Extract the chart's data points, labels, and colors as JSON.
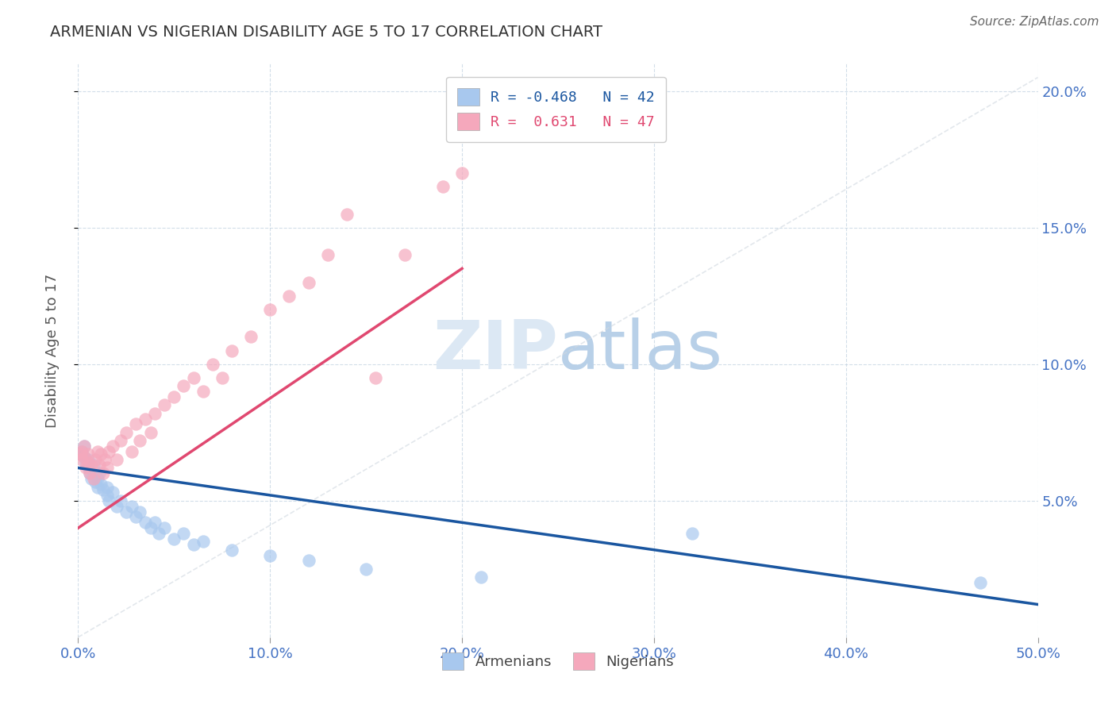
{
  "title": "ARMENIAN VS NIGERIAN DISABILITY AGE 5 TO 17 CORRELATION CHART",
  "source": "Source: ZipAtlas.com",
  "ylabel": "Disability Age 5 to 17",
  "xlim": [
    0.0,
    0.5
  ],
  "ylim": [
    0.0,
    0.21
  ],
  "xticks": [
    0.0,
    0.1,
    0.2,
    0.3,
    0.4,
    0.5
  ],
  "yticks": [
    0.05,
    0.1,
    0.15,
    0.2
  ],
  "ytick_labels": [
    "5.0%",
    "10.0%",
    "15.0%",
    "20.0%"
  ],
  "xtick_labels": [
    "0.0%",
    "10.0%",
    "20.0%",
    "30.0%",
    "40.0%",
    "50.0%"
  ],
  "legend_armenian": "R = -0.468   N = 42",
  "legend_nigerian": "R =  0.631   N = 47",
  "armenian_color": "#a8c8ee",
  "nigerian_color": "#f5a8bc",
  "armenian_line_color": "#1a56a0",
  "nigerian_line_color": "#e04870",
  "diagonal_color": "#d0d8e0",
  "title_color": "#333333",
  "tick_color": "#4472c4",
  "armenian_line_x": [
    0.0,
    0.5
  ],
  "armenian_line_y": [
    0.062,
    0.012
  ],
  "nigerian_line_x": [
    0.0,
    0.2
  ],
  "nigerian_line_y": [
    0.04,
    0.135
  ],
  "armenians_x": [
    0.001,
    0.002,
    0.003,
    0.003,
    0.004,
    0.005,
    0.005,
    0.006,
    0.007,
    0.008,
    0.009,
    0.01,
    0.01,
    0.011,
    0.012,
    0.013,
    0.015,
    0.015,
    0.016,
    0.018,
    0.02,
    0.022,
    0.025,
    0.028,
    0.03,
    0.032,
    0.035,
    0.038,
    0.04,
    0.042,
    0.045,
    0.05,
    0.055,
    0.06,
    0.065,
    0.08,
    0.1,
    0.12,
    0.15,
    0.21,
    0.32,
    0.47
  ],
  "armenians_y": [
    0.067,
    0.068,
    0.066,
    0.07,
    0.064,
    0.062,
    0.065,
    0.06,
    0.058,
    0.063,
    0.057,
    0.055,
    0.058,
    0.06,
    0.056,
    0.054,
    0.052,
    0.055,
    0.05,
    0.053,
    0.048,
    0.05,
    0.046,
    0.048,
    0.044,
    0.046,
    0.042,
    0.04,
    0.042,
    0.038,
    0.04,
    0.036,
    0.038,
    0.034,
    0.035,
    0.032,
    0.03,
    0.028,
    0.025,
    0.022,
    0.038,
    0.02
  ],
  "nigerians_x": [
    0.001,
    0.002,
    0.002,
    0.003,
    0.003,
    0.004,
    0.005,
    0.005,
    0.006,
    0.007,
    0.008,
    0.009,
    0.01,
    0.011,
    0.012,
    0.013,
    0.014,
    0.015,
    0.016,
    0.018,
    0.02,
    0.022,
    0.025,
    0.028,
    0.03,
    0.032,
    0.035,
    0.038,
    0.04,
    0.045,
    0.05,
    0.055,
    0.06,
    0.065,
    0.07,
    0.075,
    0.08,
    0.09,
    0.1,
    0.11,
    0.12,
    0.13,
    0.14,
    0.155,
    0.17,
    0.19,
    0.2
  ],
  "nigerians_y": [
    0.067,
    0.068,
    0.065,
    0.07,
    0.066,
    0.062,
    0.064,
    0.067,
    0.06,
    0.063,
    0.058,
    0.065,
    0.068,
    0.063,
    0.067,
    0.06,
    0.065,
    0.062,
    0.068,
    0.07,
    0.065,
    0.072,
    0.075,
    0.068,
    0.078,
    0.072,
    0.08,
    0.075,
    0.082,
    0.085,
    0.088,
    0.092,
    0.095,
    0.09,
    0.1,
    0.095,
    0.105,
    0.11,
    0.12,
    0.125,
    0.13,
    0.14,
    0.155,
    0.095,
    0.14,
    0.165,
    0.17
  ]
}
